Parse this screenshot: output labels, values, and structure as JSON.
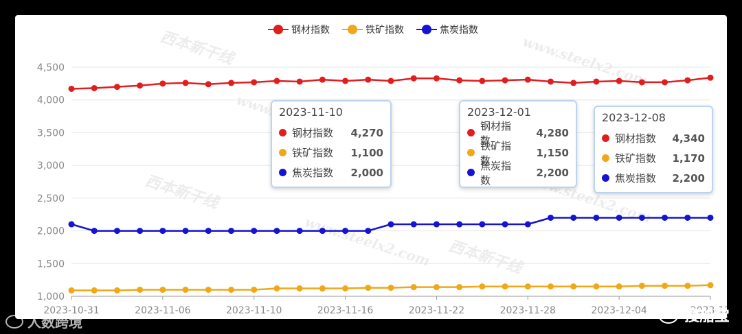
{
  "chart_data": {
    "type": "line",
    "x": [
      "2023-10-31",
      "2023-11-01",
      "2023-11-02",
      "2023-11-03",
      "2023-11-06",
      "2023-11-07",
      "2023-11-08",
      "2023-11-09",
      "2023-11-10",
      "2023-11-13",
      "2023-11-14",
      "2023-11-15",
      "2023-11-16",
      "2023-11-17",
      "2023-11-20",
      "2023-11-21",
      "2023-11-22",
      "2023-11-23",
      "2023-11-24",
      "2023-11-27",
      "2023-11-28",
      "2023-11-29",
      "2023-11-30",
      "2023-12-01",
      "2023-12-04",
      "2023-12-05",
      "2023-12-06",
      "2023-12-07",
      "2023-12-08"
    ],
    "tick_labels": [
      "2023-10-31",
      "2023-11-06",
      "2023-11-10",
      "2023-11-16",
      "2023-11-22",
      "2023-11-28",
      "2023-12-04",
      "2023-12"
    ],
    "tick_indices": [
      0,
      4,
      8,
      12,
      16,
      20,
      24,
      28
    ],
    "series": [
      {
        "name": "钢材指数",
        "color": "#e01e1e",
        "values": [
          4170,
          4180,
          4200,
          4220,
          4250,
          4260,
          4240,
          4260,
          4270,
          4290,
          4280,
          4310,
          4290,
          4310,
          4290,
          4330,
          4330,
          4300,
          4290,
          4300,
          4310,
          4280,
          4260,
          4280,
          4290,
          4270,
          4270,
          4300,
          4340
        ]
      },
      {
        "name": "铁矿指数",
        "color": "#f0a818",
        "values": [
          1090,
          1090,
          1090,
          1100,
          1100,
          1100,
          1100,
          1100,
          1100,
          1120,
          1120,
          1120,
          1120,
          1130,
          1130,
          1140,
          1140,
          1140,
          1150,
          1150,
          1150,
          1150,
          1150,
          1150,
          1150,
          1160,
          1160,
          1160,
          1170
        ]
      },
      {
        "name": "焦炭指数",
        "color": "#1414d2",
        "values": [
          2100,
          2000,
          2000,
          2000,
          2000,
          2000,
          2000,
          2000,
          2000,
          2000,
          2000,
          2000,
          2000,
          2000,
          2100,
          2100,
          2100,
          2100,
          2100,
          2100,
          2100,
          2200,
          2200,
          2200,
          2200,
          2200,
          2200,
          2200,
          2200
        ]
      }
    ],
    "y_ticks": [
      "1,000",
      "1,500",
      "2,000",
      "2,500",
      "3,000",
      "3,500",
      "4,000",
      "4,500"
    ],
    "ylim": [
      1000,
      4500
    ],
    "grid": "horizontal",
    "legend_position": "top-center"
  },
  "tooltips": [
    {
      "date": "2023-11-10",
      "rows": [
        {
          "name": "钢材指数",
          "value": "4,270",
          "color": "#e01e1e"
        },
        {
          "name": "铁矿指数",
          "value": "1,100",
          "color": "#f0a818"
        },
        {
          "name": "焦炭指数",
          "value": "2,000",
          "color": "#1414d2"
        }
      ]
    },
    {
      "date": "2023-12-01",
      "rows": [
        {
          "name": "钢材指数",
          "value": "4,280",
          "color": "#e01e1e"
        },
        {
          "name": "铁矿指数",
          "value": "1,150",
          "color": "#f0a818"
        },
        {
          "name": "焦炭指数",
          "value": "2,200",
          "color": "#1414d2"
        }
      ]
    },
    {
      "date": "2023-12-08",
      "rows": [
        {
          "name": "钢材指数",
          "value": "4,340",
          "color": "#e01e1e"
        },
        {
          "name": "铁矿指数",
          "value": "1,170",
          "color": "#f0a818"
        },
        {
          "name": "焦炭指数",
          "value": "2,200",
          "color": "#1414d2"
        }
      ]
    }
  ],
  "watermarks": {
    "brand": "西本新干线",
    "url": "www.steelx2.com"
  },
  "overlay": {
    "wechat": "搜船宝",
    "renshu": "人数跨境"
  }
}
